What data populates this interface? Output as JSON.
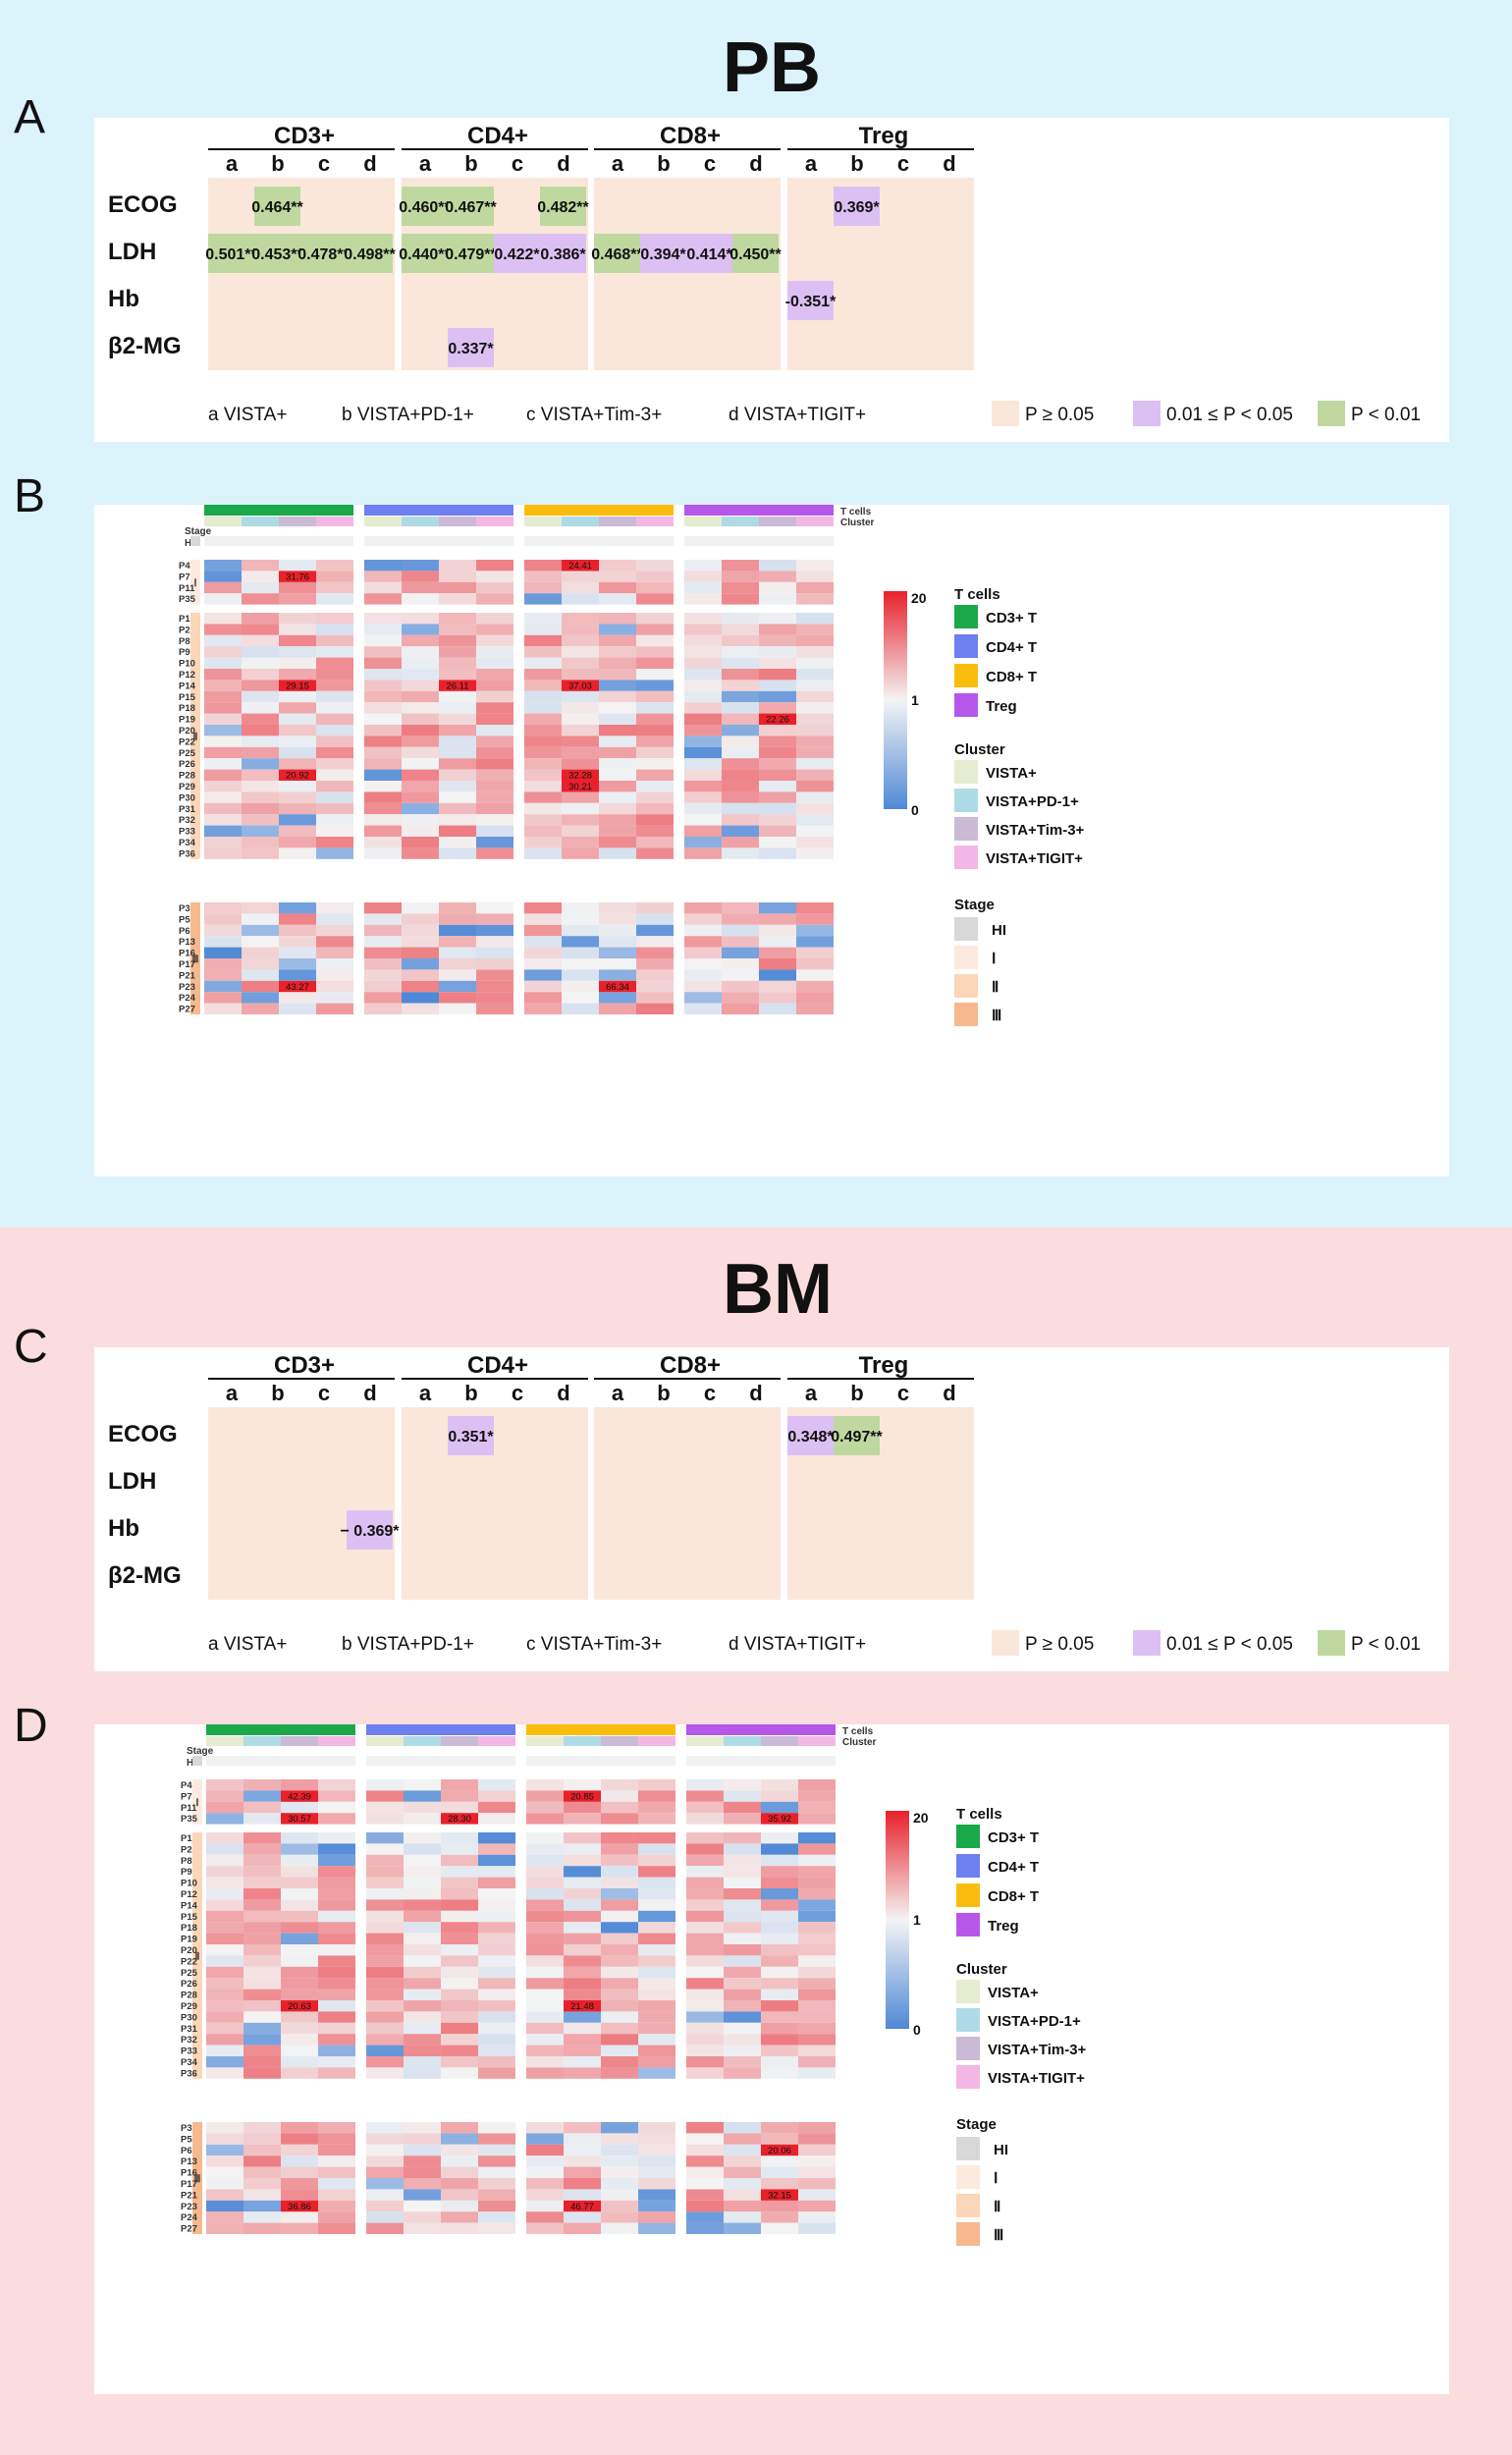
{
  "figure": {
    "pb_title": "PB",
    "bm_title": "BM",
    "panel_labels": [
      "A",
      "B",
      "C",
      "D"
    ]
  },
  "colors": {
    "nonsig": "#fbe7d9",
    "p05": "#dcc0f4",
    "p01": "#bfd8a0",
    "cd3": "#1aa84a",
    "cd4": "#6e7ff0",
    "cd8": "#fbbd0d",
    "treg": "#b757ea",
    "vista": "#e5ecd0",
    "vista_pd1": "#aedbe6",
    "vista_tim3": "#cbbad6",
    "vista_tigit": "#f3b7e6",
    "hi": "#d8d8d8",
    "stage1": "#fdeadf",
    "stage2": "#fbd6b8",
    "stage3": "#f6b98d",
    "scale_high": "#e8212b",
    "scale_mid": "#f4f4f4",
    "scale_low": "#4f88d6"
  },
  "corr_tables": {
    "groups": [
      "CD3+",
      "CD4+",
      "CD8+",
      "Treg"
    ],
    "subcols": [
      "a",
      "b",
      "c",
      "d"
    ],
    "rows": [
      "ECOG",
      "LDH",
      "Hb",
      "β2-MG"
    ],
    "footnote_subsets": [
      "a VISTA+",
      "b VISTA+PD-1+",
      "c VISTA+Tim-3+",
      "d VISTA+TIGIT+"
    ],
    "legend_nonsig_label": "P ≥ 0.05",
    "legend_p05_label": "0.01 ≤ P < 0.05",
    "legend_p01_label": "P < 0.01",
    "pb_cells": [
      {
        "row": 0,
        "group": 0,
        "col": 1,
        "text": "0.464**",
        "level": "p01"
      },
      {
        "row": 0,
        "group": 1,
        "col": 0,
        "text": "0.460**",
        "level": "p01"
      },
      {
        "row": 0,
        "group": 1,
        "col": 1,
        "text": "0.467**",
        "level": "p01"
      },
      {
        "row": 0,
        "group": 1,
        "col": 3,
        "text": "0.482**",
        "level": "p01"
      },
      {
        "row": 0,
        "group": 3,
        "col": 1,
        "text": "0.369*",
        "level": "p05"
      },
      {
        "row": 1,
        "group": 0,
        "col": 0,
        "text": "0.501**",
        "level": "p01"
      },
      {
        "row": 1,
        "group": 0,
        "col": 1,
        "text": "0.453**",
        "level": "p01"
      },
      {
        "row": 1,
        "group": 0,
        "col": 2,
        "text": "0.478**",
        "level": "p01"
      },
      {
        "row": 1,
        "group": 0,
        "col": 3,
        "text": "0.498**",
        "level": "p01"
      },
      {
        "row": 1,
        "group": 1,
        "col": 0,
        "text": "0.440**",
        "level": "p01"
      },
      {
        "row": 1,
        "group": 1,
        "col": 1,
        "text": "0.479**",
        "level": "p01"
      },
      {
        "row": 1,
        "group": 1,
        "col": 2,
        "text": "0.422*",
        "level": "p05"
      },
      {
        "row": 1,
        "group": 1,
        "col": 3,
        "text": "0.386*",
        "level": "p05"
      },
      {
        "row": 1,
        "group": 2,
        "col": 0,
        "text": "0.468**",
        "level": "p01"
      },
      {
        "row": 1,
        "group": 2,
        "col": 1,
        "text": "0.394*",
        "level": "p05"
      },
      {
        "row": 1,
        "group": 2,
        "col": 2,
        "text": "0.414*",
        "level": "p05"
      },
      {
        "row": 1,
        "group": 2,
        "col": 3,
        "text": "0.450**",
        "level": "p01"
      },
      {
        "row": 2,
        "group": 3,
        "col": 0,
        "text": "-0.351*",
        "level": "p05"
      },
      {
        "row": 3,
        "group": 1,
        "col": 1,
        "text": "0.337*",
        "level": "p05"
      }
    ],
    "bm_cells": [
      {
        "row": 0,
        "group": 1,
        "col": 1,
        "text": "0.351*",
        "level": "p05"
      },
      {
        "row": 0,
        "group": 3,
        "col": 0,
        "text": "0.348*",
        "level": "p05"
      },
      {
        "row": 0,
        "group": 3,
        "col": 1,
        "text": "0.497**",
        "level": "p01"
      },
      {
        "row": 2,
        "group": 0,
        "col": 3,
        "text": "− 0.369*",
        "level": "p05"
      }
    ]
  },
  "heatmap": {
    "stage_row_label": "Stage",
    "hi_label": "HI",
    "top_labels": [
      "T cells",
      "Cluster"
    ],
    "stage_roman": [
      "Ⅰ",
      "Ⅱ",
      "Ⅲ"
    ],
    "legend": {
      "scale_title_top": "20",
      "scale_title_mid": "1",
      "scale_title_bottom": "0",
      "tcells_title": "T cells",
      "tcells": [
        "CD3+ T",
        "CD4+ T",
        "CD8+ T",
        "Treg"
      ],
      "cluster_title": "Cluster",
      "clusters": [
        "VISTA+",
        "VISTA+PD-1+",
        "VISTA+Tim-3+",
        "VISTA+TIGIT+"
      ],
      "stage_title": "Stage",
      "stages": [
        "HI",
        "Ⅰ",
        "Ⅱ",
        "Ⅲ"
      ]
    },
    "groups": [
      {
        "stage": 1,
        "patients": [
          "P4",
          "P7",
          "P11",
          "P35"
        ]
      },
      {
        "stage": 2,
        "patients": [
          "P1",
          "P2",
          "P8",
          "P9",
          "P10",
          "P12",
          "P14",
          "P15",
          "P18",
          "P19",
          "P20",
          "P22",
          "P25",
          "P26",
          "P28",
          "P29",
          "P30",
          "P31",
          "P32",
          "P33",
          "P34",
          "P36"
        ]
      },
      {
        "stage": 3,
        "patients": [
          "P3",
          "P5",
          "P6",
          "P13",
          "P16",
          "P17",
          "P21",
          "P23",
          "P24",
          "P27"
        ]
      }
    ],
    "pb_annotations": [
      {
        "patient": "P7",
        "col": 2,
        "text": "31.76"
      },
      {
        "patient": "P4",
        "col": 9,
        "text": "24.41"
      },
      {
        "patient": "P14",
        "col": 2,
        "text": "29.15"
      },
      {
        "patient": "P14",
        "col": 6,
        "text": "26.11"
      },
      {
        "patient": "P14",
        "col": 9,
        "text": "37.03"
      },
      {
        "patient": "P19",
        "col": 14,
        "text": "22.26"
      },
      {
        "patient": "P28",
        "col": 2,
        "text": "20.92"
      },
      {
        "patient": "P28",
        "col": 9,
        "text": "32.28"
      },
      {
        "patient": "P29",
        "col": 9,
        "text": "30.21"
      },
      {
        "patient": "P23",
        "col": 2,
        "text": "43.27"
      },
      {
        "patient": "P23",
        "col": 10,
        "text": "66.34"
      }
    ],
    "bm_annotations": [
      {
        "patient": "P7",
        "col": 2,
        "text": "42.39"
      },
      {
        "patient": "P7",
        "col": 9,
        "text": "20.85"
      },
      {
        "patient": "P35",
        "col": 2,
        "text": "30.57"
      },
      {
        "patient": "P35",
        "col": 6,
        "text": "28.30"
      },
      {
        "patient": "P35",
        "col": 14,
        "text": "35.92"
      },
      {
        "patient": "P29",
        "col": 2,
        "text": "20.63"
      },
      {
        "patient": "P29",
        "col": 9,
        "text": "21.48"
      },
      {
        "patient": "P6",
        "col": 14,
        "text": "20.06"
      },
      {
        "patient": "P21",
        "col": 14,
        "text": "32.15"
      },
      {
        "patient": "P23",
        "col": 2,
        "text": "36.86"
      },
      {
        "patient": "P23",
        "col": 9,
        "text": "46.77"
      }
    ]
  }
}
